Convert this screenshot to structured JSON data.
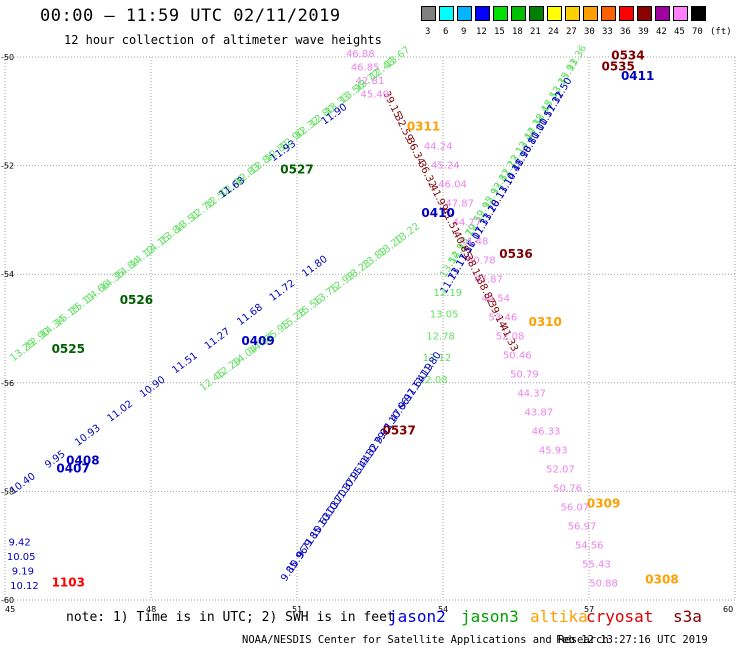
{
  "header": {
    "title": "00:00 – 11:59 UTC 02/11/2019",
    "subtitle": "12 hour collection of altimeter wave heights"
  },
  "color_scale": {
    "unit_label": "(ft)",
    "swatches": [
      {
        "label": "3",
        "color": "#808080"
      },
      {
        "label": "6",
        "color": "#00ffff"
      },
      {
        "label": "9",
        "color": "#00b4ff"
      },
      {
        "label": "12",
        "color": "#0000ff"
      },
      {
        "label": "15",
        "color": "#00e000"
      },
      {
        "label": "18",
        "color": "#00c000"
      },
      {
        "label": "21",
        "color": "#008000"
      },
      {
        "label": "24",
        "color": "#ffff00"
      },
      {
        "label": "27",
        "color": "#ffd000"
      },
      {
        "label": "30",
        "color": "#ffa000"
      },
      {
        "label": "33",
        "color": "#ff6000"
      },
      {
        "label": "36",
        "color": "#ff0000"
      },
      {
        "label": "39",
        "color": "#8b0000"
      },
      {
        "label": "42",
        "color": "#a000a0"
      },
      {
        "label": "45",
        "color": "#ff80ff"
      },
      {
        "label": "70",
        "color": "#000000"
      }
    ]
  },
  "map": {
    "lon_min": 45,
    "lon_max": 60,
    "lat_min": -60,
    "lat_max": -50,
    "x_ticks": [
      "45",
      "48",
      "51",
      "54",
      "57",
      "60"
    ],
    "y_ticks": [
      "-50",
      "-52",
      "-54",
      "-56",
      "-58",
      "-60"
    ],
    "pass_labels": [
      {
        "text": "0534",
        "lon": 57.8,
        "lat": -50.05,
        "color": "#800000"
      },
      {
        "text": "0535",
        "lon": 57.6,
        "lat": -50.25,
        "color": "#800000"
      },
      {
        "text": "0411",
        "lon": 58.0,
        "lat": -50.42,
        "color": "#0000c0"
      },
      {
        "text": "0311",
        "lon": 53.6,
        "lat": -51.35,
        "color": "#ffa000"
      },
      {
        "text": "0527",
        "lon": 51.0,
        "lat": -52.15,
        "color": "#006000"
      },
      {
        "text": "0410",
        "lon": 53.9,
        "lat": -52.95,
        "color": "#0000c0"
      },
      {
        "text": "0536",
        "lon": 55.5,
        "lat": -53.7,
        "color": "#800000"
      },
      {
        "text": "0526",
        "lon": 47.7,
        "lat": -54.55,
        "color": "#006000"
      },
      {
        "text": "0310",
        "lon": 56.1,
        "lat": -54.95,
        "color": "#ffa000"
      },
      {
        "text": "0409",
        "lon": 50.2,
        "lat": -55.3,
        "color": "#0000c0"
      },
      {
        "text": "0525",
        "lon": 46.3,
        "lat": -55.45,
        "color": "#006000"
      },
      {
        "text": "0537",
        "lon": 53.1,
        "lat": -56.95,
        "color": "#800000"
      },
      {
        "text": "0408",
        "lon": 46.6,
        "lat": -57.5,
        "color": "#0000c0"
      },
      {
        "text": "0407",
        "lon": 46.4,
        "lat": -57.65,
        "color": "#0000c0"
      },
      {
        "text": "0309",
        "lon": 57.3,
        "lat": -58.3,
        "color": "#ffa000"
      },
      {
        "text": "0308",
        "lon": 58.5,
        "lat": -59.7,
        "color": "#ffa000"
      },
      {
        "text": "1103",
        "lon": 46.3,
        "lat": -59.75,
        "color": "#ff0000"
      }
    ],
    "tracks": [
      {
        "name": "jason3-east",
        "color": "#60e060",
        "values": [
          "13.36",
          "13.91",
          "13.35",
          "13.53",
          "12.45",
          "12.38",
          "12.44",
          "12.13",
          "12.23",
          "12.81",
          "12.93",
          "12.95",
          "12.59",
          "13.79",
          "12.93",
          "13.54"
        ],
        "start": [
          56.8,
          -50.05
        ],
        "end": [
          54.2,
          -53.85
        ]
      },
      {
        "name": "jason2-east",
        "color": "#0000c0",
        "values": [
          "11.50",
          "11.32",
          "11.57",
          "10.00",
          "10.81",
          "11.98",
          "10.48",
          "11.14",
          "10.13",
          "11.28",
          "11.33",
          "11.07",
          "11.56",
          "11.17",
          "11.73"
        ],
        "start": [
          56.5,
          -50.65
        ],
        "end": [
          54.2,
          -54.15
        ]
      },
      {
        "name": "altika-east",
        "color": "#ee82ee",
        "values": [
          "44.24",
          "45.24",
          "46.04",
          "47.87",
          "44.77",
          "44.48",
          "50.78",
          "47.87",
          "44.54",
          "53.46",
          "52.08",
          "50.46",
          "50.79",
          "44.37",
          "43.87",
          "46.33",
          "45.93",
          "52.07",
          "50.76",
          "56.07",
          "56.97",
          "54.56",
          "55.43",
          "50.88"
        ],
        "start": [
          53.9,
          -51.7
        ],
        "end": [
          57.3,
          -59.75
        ]
      },
      {
        "name": "cryosat",
        "color": "#800000",
        "values": [
          "39.15",
          "32.59",
          "36.34",
          "36.32",
          "41.99",
          "41.51",
          "40.85",
          "38.15",
          "38.82",
          "39.14",
          "41.33"
        ],
        "start": [
          52.9,
          -50.9
        ],
        "end": [
          55.3,
          -55.2
        ]
      },
      {
        "name": "altika-west",
        "color": "#ee82ee",
        "values": [
          "46.88",
          "46.85",
          "42.81",
          "45.49"
        ],
        "start": [
          52.3,
          -50.0
        ],
        "end": [
          52.6,
          -50.75
        ]
      },
      {
        "name": "jason3-west-a",
        "color": "#60e060",
        "values": [
          "13.67",
          "12.48",
          "13.72",
          "13.56",
          "13.33",
          "12.80",
          "12.32",
          "12.90",
          "12.81",
          "12.84",
          "12.83",
          "12.46",
          "12.52",
          "12.78",
          "13.51",
          "13.84",
          "14.15",
          "14.12",
          "14.84",
          "14.35",
          "14.66",
          "15.11",
          "15.15",
          "14.34",
          "12.90",
          "13.29"
        ],
        "start": [
          53.1,
          -50.05
        ],
        "end": [
          45.4,
          -55.45
        ]
      },
      {
        "name": "jason3-west-b",
        "color": "#60e060",
        "values": [
          "13.22",
          "13.20",
          "13.89",
          "13.23",
          "12.99",
          "13.75",
          "15.56",
          "15.28",
          "15.95",
          "14.54",
          "14.04",
          "12.29",
          "12.46"
        ],
        "start": [
          53.3,
          -53.3
        ],
        "end": [
          49.3,
          -56.0
        ]
      },
      {
        "name": "jason2-west-a",
        "color": "#0000c0",
        "values": [
          "11.90",
          "11.93",
          "11.63"
        ],
        "start": [
          51.8,
          -51.1
        ],
        "end": [
          49.7,
          -52.45
        ]
      },
      {
        "name": "jason2-west-b",
        "color": "#0000c0",
        "values": [
          "11.80",
          "11.72",
          "11.68",
          "11.27",
          "11.51",
          "10.90",
          "11.02",
          "10.93",
          "9.95",
          "10.40"
        ],
        "start": [
          51.4,
          -53.9
        ],
        "end": [
          45.4,
          -57.9
        ]
      },
      {
        "name": "jason3-south",
        "color": "#60e060",
        "values": [
          "12.19",
          "13.05",
          "12.78",
          "13.12",
          "12.08"
        ],
        "start": [
          54.1,
          -54.4
        ],
        "end": [
          53.8,
          -56.0
        ]
      },
      {
        "name": "jason2-south",
        "color": "#0000c0",
        "values": [
          "11.80",
          "11.19",
          "11.64",
          "9.97",
          "10.66",
          "11.47",
          "9.92",
          "10.79",
          "11.32",
          "11.44",
          "10.95",
          "11.37",
          "10.70",
          "10.03",
          "10.63",
          "9.85",
          "9.71",
          "10.96",
          "9.85"
        ],
        "start": [
          53.8,
          -55.7
        ],
        "end": [
          50.9,
          -59.5
        ]
      },
      {
        "name": "jason2-southwest",
        "color": "#0000c0",
        "values": [
          "9.42",
          "10.05",
          "9.19",
          "10.12"
        ],
        "start": [
          45.3,
          -59.0
        ],
        "end": [
          45.4,
          -59.8
        ]
      }
    ]
  },
  "footer": {
    "note": "note:  1) Time is in UTC; 2) SWH is in feet",
    "legend": [
      {
        "name": "jason2",
        "color": "#0000e0"
      },
      {
        "name": "jason3",
        "color": "#00a000"
      },
      {
        "name": "altika",
        "color": "#ffa000"
      },
      {
        "name": "cryosat",
        "color": "#e00000"
      },
      {
        "name": "s3a",
        "color": "#800000"
      }
    ],
    "credit": "NOAA/NESDIS Center for Satellite Applications and Research",
    "timestamp": "Feb 12 13:27:16 UTC 2019"
  }
}
